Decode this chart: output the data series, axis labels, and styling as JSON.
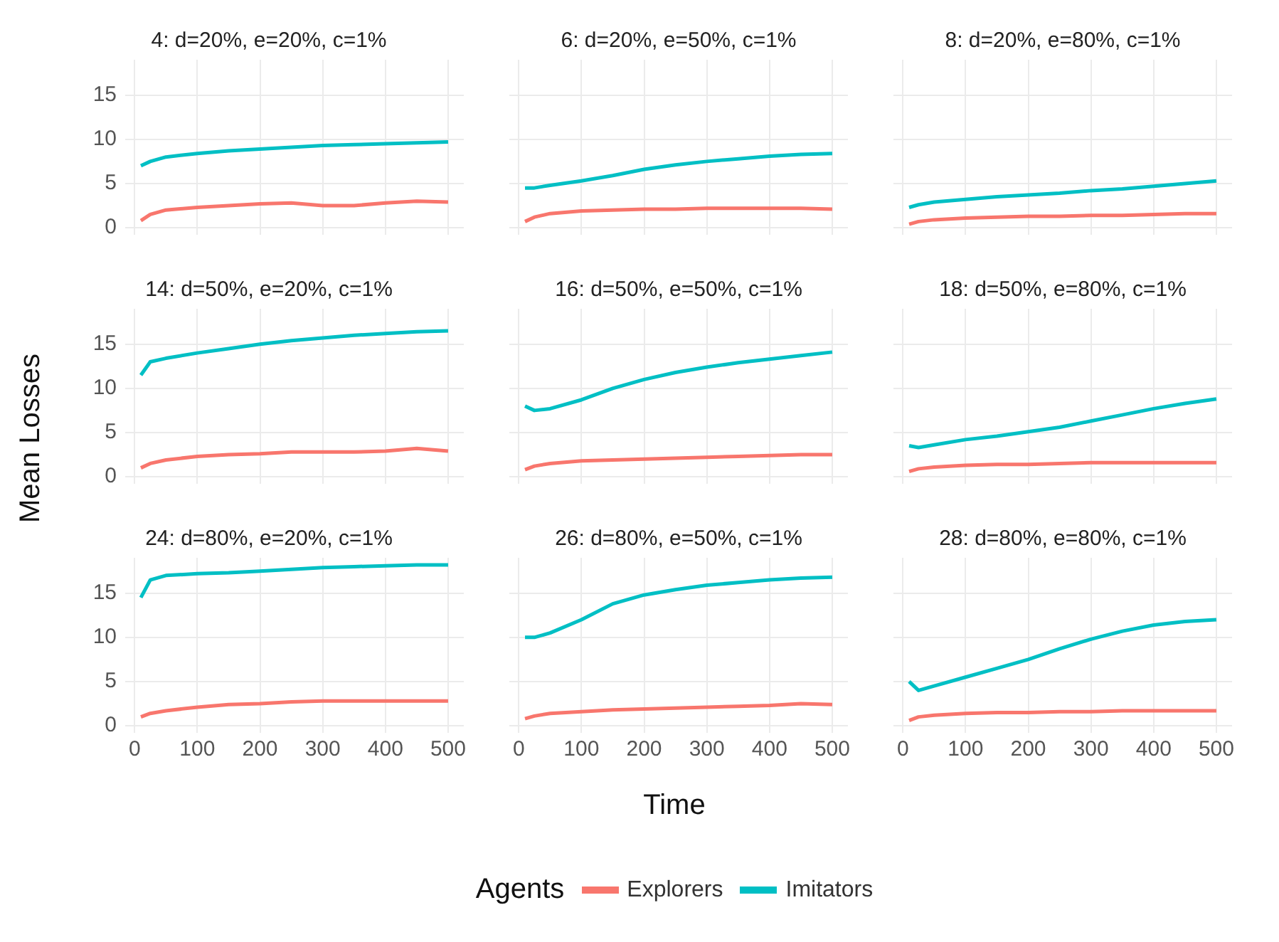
{
  "chart_data": [
    {
      "type": "line",
      "title": "4: d=20%, e=20%, c=1%",
      "legend": "bottom",
      "legend_title": "Agents",
      "x": [
        10,
        25,
        50,
        100,
        150,
        200,
        250,
        300,
        350,
        400,
        450,
        500
      ],
      "xlim": [
        -15,
        525
      ],
      "xticks": [
        0,
        100,
        200,
        300,
        400,
        500
      ],
      "ylim": [
        -0.8,
        19
      ],
      "yticks": [
        0,
        5,
        10,
        15
      ],
      "grid": true,
      "tick_labels": "y",
      "series": [
        {
          "name": "Explorers",
          "color": "#f8766d",
          "values": [
            0.8,
            1.5,
            2,
            2.3,
            2.5,
            2.7,
            2.8,
            2.5,
            2.5,
            2.8,
            3,
            2.9
          ]
        },
        {
          "name": "Imitators",
          "color": "#00bfc4",
          "values": [
            7,
            7.5,
            8,
            8.4,
            8.7,
            8.9,
            9.1,
            9.3,
            9.4,
            9.5,
            9.6,
            9.7
          ]
        }
      ]
    },
    {
      "type": "line",
      "title": "6: d=20%, e=50%, c=1%",
      "x": [
        10,
        25,
        50,
        100,
        150,
        200,
        250,
        300,
        350,
        400,
        450,
        500
      ],
      "xlim": [
        -15,
        525
      ],
      "xticks": [
        0,
        100,
        200,
        300,
        400,
        500
      ],
      "ylim": [
        -0.8,
        19
      ],
      "yticks": [
        0,
        5,
        10,
        15
      ],
      "grid": true,
      "tick_labels": false,
      "series": [
        {
          "color": "#f8766d",
          "values": [
            0.7,
            1.2,
            1.6,
            1.9,
            2,
            2.1,
            2.1,
            2.2,
            2.2,
            2.2,
            2.2,
            2.1
          ]
        },
        {
          "color": "#00bfc4",
          "values": [
            4.5,
            4.5,
            4.8,
            5.3,
            5.9,
            6.6,
            7.1,
            7.5,
            7.8,
            8.1,
            8.3,
            8.4
          ]
        }
      ]
    },
    {
      "type": "line",
      "title": "8: d=20%, e=80%, c=1%",
      "x": [
        10,
        25,
        50,
        100,
        150,
        200,
        250,
        300,
        350,
        400,
        450,
        500
      ],
      "xlim": [
        -15,
        525
      ],
      "xticks": [
        0,
        100,
        200,
        300,
        400,
        500
      ],
      "ylim": [
        -0.8,
        19
      ],
      "yticks": [
        0,
        5,
        10,
        15
      ],
      "grid": true,
      "tick_labels": false,
      "series": [
        {
          "color": "#f8766d",
          "values": [
            0.4,
            0.7,
            0.9,
            1.1,
            1.2,
            1.3,
            1.3,
            1.4,
            1.4,
            1.5,
            1.6,
            1.6
          ]
        },
        {
          "color": "#00bfc4",
          "values": [
            2.3,
            2.6,
            2.9,
            3.2,
            3.5,
            3.7,
            3.9,
            4.2,
            4.4,
            4.7,
            5,
            5.3
          ]
        }
      ]
    },
    {
      "type": "line",
      "title": "14: d=50%, e=20%, c=1%",
      "ylabel": "Mean Losses",
      "x": [
        10,
        25,
        50,
        100,
        150,
        200,
        250,
        300,
        350,
        400,
        450,
        500
      ],
      "xlim": [
        -15,
        525
      ],
      "xticks": [
        0,
        100,
        200,
        300,
        400,
        500
      ],
      "ylim": [
        -0.8,
        19
      ],
      "yticks": [
        0,
        5,
        10,
        15
      ],
      "grid": true,
      "tick_labels": "y",
      "series": [
        {
          "color": "#f8766d",
          "values": [
            1,
            1.5,
            1.9,
            2.3,
            2.5,
            2.6,
            2.8,
            2.8,
            2.8,
            2.9,
            3.2,
            2.9
          ]
        },
        {
          "color": "#00bfc4",
          "values": [
            11.5,
            13,
            13.4,
            14,
            14.5,
            15,
            15.4,
            15.7,
            16,
            16.2,
            16.4,
            16.5
          ]
        }
      ]
    },
    {
      "type": "line",
      "title": "16: d=50%, e=50%, c=1%",
      "x": [
        10,
        25,
        50,
        100,
        150,
        200,
        250,
        300,
        350,
        400,
        450,
        500
      ],
      "xlim": [
        -15,
        525
      ],
      "xticks": [
        0,
        100,
        200,
        300,
        400,
        500
      ],
      "ylim": [
        -0.8,
        19
      ],
      "yticks": [
        0,
        5,
        10,
        15
      ],
      "grid": true,
      "tick_labels": false,
      "series": [
        {
          "color": "#f8766d",
          "values": [
            0.8,
            1.2,
            1.5,
            1.8,
            1.9,
            2,
            2.1,
            2.2,
            2.3,
            2.4,
            2.5,
            2.5
          ]
        },
        {
          "color": "#00bfc4",
          "values": [
            8,
            7.5,
            7.7,
            8.7,
            10,
            11,
            11.8,
            12.4,
            12.9,
            13.3,
            13.7,
            14.1
          ]
        }
      ]
    },
    {
      "type": "line",
      "title": "18: d=50%, e=80%, c=1%",
      "x": [
        10,
        25,
        50,
        100,
        150,
        200,
        250,
        300,
        350,
        400,
        450,
        500
      ],
      "xlim": [
        -15,
        525
      ],
      "xticks": [
        0,
        100,
        200,
        300,
        400,
        500
      ],
      "ylim": [
        -0.8,
        19
      ],
      "yticks": [
        0,
        5,
        10,
        15
      ],
      "grid": true,
      "tick_labels": false,
      "series": [
        {
          "color": "#f8766d",
          "values": [
            0.6,
            0.9,
            1.1,
            1.3,
            1.4,
            1.4,
            1.5,
            1.6,
            1.6,
            1.6,
            1.6,
            1.6
          ]
        },
        {
          "color": "#00bfc4",
          "values": [
            3.5,
            3.3,
            3.6,
            4.2,
            4.6,
            5.1,
            5.6,
            6.3,
            7,
            7.7,
            8.3,
            8.8
          ]
        }
      ]
    },
    {
      "type": "line",
      "title": "24: d=80%, e=20%, c=1%",
      "x": [
        10,
        25,
        50,
        100,
        150,
        200,
        250,
        300,
        350,
        400,
        450,
        500
      ],
      "xlim": [
        -15,
        525
      ],
      "xticks": [
        0,
        100,
        200,
        300,
        400,
        500
      ],
      "ylim": [
        -0.8,
        19
      ],
      "yticks": [
        0,
        5,
        10,
        15
      ],
      "grid": true,
      "series": [
        {
          "color": "#f8766d",
          "values": [
            1,
            1.4,
            1.7,
            2.1,
            2.4,
            2.5,
            2.7,
            2.8,
            2.8,
            2.8,
            2.8,
            2.8
          ]
        },
        {
          "color": "#00bfc4",
          "values": [
            14.5,
            16.5,
            17,
            17.2,
            17.3,
            17.5,
            17.7,
            17.9,
            18,
            18.1,
            18.2,
            18.2
          ]
        }
      ]
    },
    {
      "type": "line",
      "title": "26: d=80%, e=50%, c=1%",
      "xlabel": "Time",
      "x": [
        10,
        25,
        50,
        100,
        150,
        200,
        250,
        300,
        350,
        400,
        450,
        500
      ],
      "xlim": [
        -15,
        525
      ],
      "xticks": [
        0,
        100,
        200,
        300,
        400,
        500
      ],
      "ylim": [
        -0.8,
        19
      ],
      "yticks": [
        0,
        5,
        10,
        15
      ],
      "grid": true,
      "tick_labels": "x",
      "series": [
        {
          "color": "#f8766d",
          "values": [
            0.8,
            1.1,
            1.4,
            1.6,
            1.8,
            1.9,
            2,
            2.1,
            2.2,
            2.3,
            2.5,
            2.4
          ]
        },
        {
          "color": "#00bfc4",
          "values": [
            10,
            10,
            10.5,
            12,
            13.8,
            14.8,
            15.4,
            15.9,
            16.2,
            16.5,
            16.7,
            16.8
          ]
        }
      ]
    },
    {
      "type": "line",
      "title": "28: d=80%, e=80%, c=1%",
      "x": [
        10,
        25,
        50,
        100,
        150,
        200,
        250,
        300,
        350,
        400,
        450,
        500
      ],
      "xlim": [
        -15,
        525
      ],
      "xticks": [
        0,
        100,
        200,
        300,
        400,
        500
      ],
      "ylim": [
        -0.8,
        19
      ],
      "yticks": [
        0,
        5,
        10,
        15
      ],
      "grid": true,
      "tick_labels": "x",
      "series": [
        {
          "color": "#f8766d",
          "values": [
            0.6,
            1,
            1.2,
            1.4,
            1.5,
            1.5,
            1.6,
            1.6,
            1.7,
            1.7,
            1.7,
            1.7
          ]
        },
        {
          "color": "#00bfc4",
          "values": [
            5,
            4,
            4.5,
            5.5,
            6.5,
            7.5,
            8.7,
            9.8,
            10.7,
            11.4,
            11.8,
            12
          ]
        }
      ]
    }
  ]
}
